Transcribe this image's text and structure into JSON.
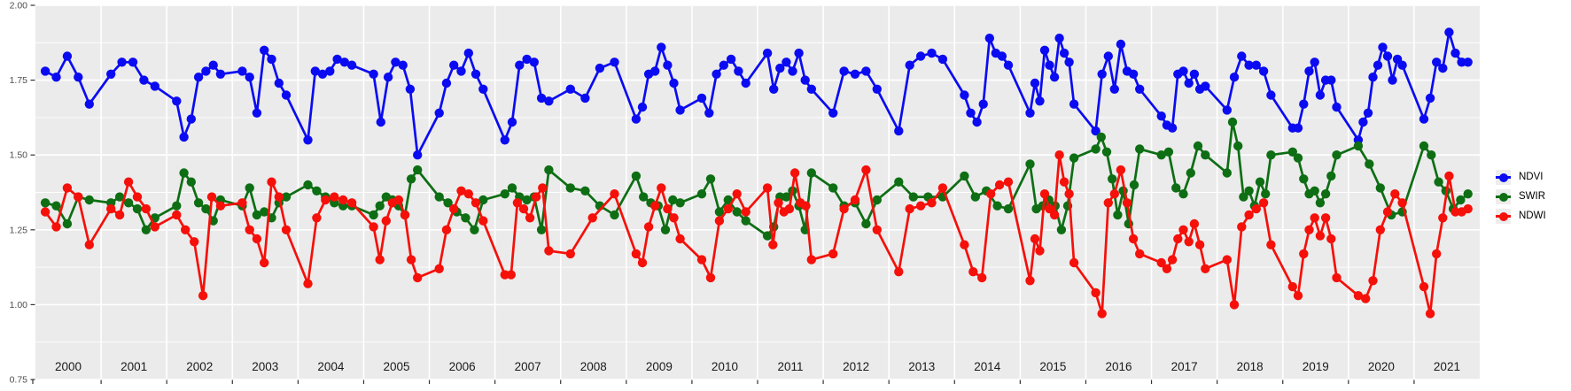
{
  "chart": {
    "title": "",
    "y_axis_labels": [
      "2.00",
      "1.75",
      "1.50",
      "1.25",
      "1.00",
      "0.75"
    ],
    "x_axis_labels": [
      "2000",
      "2001",
      "2002",
      "2003",
      "2004",
      "2005",
      "2006",
      "2007",
      "2008",
      "2009",
      "2010",
      "2011",
      "2012",
      "2013",
      "2014",
      "2015",
      "2016",
      "2017",
      "2018",
      "2019",
      "2020",
      "2021"
    ]
  },
  "legend": {
    "items": [
      {
        "label": "NDVI",
        "color": "#0b0bf2"
      },
      {
        "label": "SWIR",
        "color": "#0e6e14"
      },
      {
        "label": "NDWI",
        "color": "#f5100a"
      }
    ]
  },
  "chart_data": {
    "type": "line",
    "title": "",
    "xlabel": "",
    "ylabel": "",
    "ylim": [
      0.75,
      2.0
    ],
    "yticks": [
      0.75,
      1.0,
      1.25,
      1.5,
      1.75,
      2.0
    ],
    "y_minor_ticks": [
      0.875,
      1.125,
      1.375,
      1.625,
      1.875
    ],
    "grid": true,
    "panel_bg": "#ebebeb",
    "grid_color": "#ffffff",
    "tick_color": "#333333",
    "axis_text_color": "#4d4d4d",
    "year_label_color": "#1a1a1a",
    "legend_position": "right",
    "years": [
      "2000",
      "2001",
      "2002",
      "2003",
      "2004",
      "2005",
      "2006",
      "2007",
      "2008",
      "2009",
      "2010",
      "2011",
      "2012",
      "2013",
      "2014",
      "2015",
      "2016",
      "2017",
      "2018",
      "2019",
      "2020",
      "2021"
    ],
    "series": [
      {
        "name": "NDVI",
        "color": "#0b0bf2",
        "values_by_year": {
          "2000": [
            1.78,
            1.76,
            1.83,
            1.76,
            1.67
          ],
          "2001": [
            1.77,
            1.81,
            1.81,
            1.75,
            1.73
          ],
          "2002": [
            1.68,
            1.56,
            1.62,
            1.76,
            1.78,
            1.8,
            1.77
          ],
          "2003": [
            1.78,
            1.76,
            1.64,
            1.85,
            1.82,
            1.74,
            1.7
          ],
          "2004": [
            1.55,
            1.78,
            1.77,
            1.78,
            1.82,
            1.81,
            1.8
          ],
          "2005": [
            1.77,
            1.61,
            1.76,
            1.81,
            1.8,
            1.72,
            1.5
          ],
          "2006": [
            1.64,
            1.74,
            1.8,
            1.78,
            1.84,
            1.77,
            1.72
          ],
          "2007": [
            1.55,
            1.61,
            1.8,
            1.82,
            1.81,
            1.69,
            1.68
          ],
          "2008": [
            1.72,
            1.69,
            1.79,
            1.81
          ],
          "2009": [
            1.62,
            1.66,
            1.77,
            1.78,
            1.86,
            1.8,
            1.74,
            1.65
          ],
          "2010": [
            1.69,
            1.64,
            1.77,
            1.8,
            1.82,
            1.78,
            1.74
          ],
          "2011": [
            1.84,
            1.72,
            1.79,
            1.81,
            1.78,
            1.84,
            1.75,
            1.72
          ],
          "2012": [
            1.64,
            1.78,
            1.77,
            1.78,
            1.72
          ],
          "2013": [
            1.58,
            1.8,
            1.83,
            1.84,
            1.82
          ],
          "2014": [
            1.7,
            1.64,
            1.61,
            1.67,
            1.89,
            1.84,
            1.83,
            1.8
          ],
          "2015": [
            1.64,
            1.74,
            1.68,
            1.85,
            1.8,
            1.76,
            1.89,
            1.84,
            1.81,
            1.67
          ],
          "2016": [
            1.58,
            1.77,
            1.83,
            1.72,
            1.87,
            1.78,
            1.77,
            1.72
          ],
          "2017": [
            1.63,
            1.6,
            1.59,
            1.77,
            1.78,
            1.74,
            1.77,
            1.72,
            1.73
          ],
          "2018": [
            1.65,
            1.76,
            1.83,
            1.8,
            1.8,
            1.78,
            1.7
          ],
          "2019": [
            1.59,
            1.59,
            1.67,
            1.78,
            1.81,
            1.7,
            1.75,
            1.75,
            1.66
          ],
          "2020": [
            1.55,
            1.61,
            1.64,
            1.76,
            1.8,
            1.86,
            1.83,
            1.75,
            1.82,
            1.8
          ],
          "2021": [
            1.62,
            1.69,
            1.81,
            1.79,
            1.91,
            1.84,
            1.81,
            1.81
          ]
        }
      },
      {
        "name": "SWIR",
        "color": "#0e6e14",
        "values_by_year": {
          "2000": [
            1.34,
            1.33,
            1.27,
            1.36,
            1.35
          ],
          "2001": [
            1.34,
            1.36,
            1.34,
            1.32,
            1.25,
            1.29
          ],
          "2002": [
            1.33,
            1.44,
            1.41,
            1.34,
            1.32,
            1.28,
            1.35
          ],
          "2003": [
            1.33,
            1.39,
            1.3,
            1.31,
            1.29,
            1.34,
            1.36
          ],
          "2004": [
            1.4,
            1.38,
            1.36,
            1.34,
            1.33,
            1.33
          ],
          "2005": [
            1.3,
            1.33,
            1.36,
            1.35,
            1.33,
            1.3,
            1.42,
            1.45
          ],
          "2006": [
            1.36,
            1.34,
            1.31,
            1.29,
            1.25,
            1.35
          ],
          "2007": [
            1.37,
            1.39,
            1.36,
            1.35,
            1.36,
            1.25,
            1.45
          ],
          "2008": [
            1.39,
            1.38,
            1.33,
            1.3
          ],
          "2009": [
            1.43,
            1.36,
            1.34,
            1.33,
            1.25,
            1.35,
            1.34
          ],
          "2010": [
            1.37,
            1.42,
            1.31,
            1.35,
            1.31,
            1.28
          ],
          "2011": [
            1.23,
            1.26,
            1.36,
            1.36,
            1.38,
            1.33,
            1.25,
            1.44
          ],
          "2012": [
            1.39,
            1.33,
            1.34,
            1.27,
            1.35
          ],
          "2013": [
            1.41,
            1.36,
            1.36,
            1.36
          ],
          "2014": [
            1.43,
            1.36,
            1.38,
            1.33,
            1.32
          ],
          "2015": [
            1.47,
            1.32,
            1.33,
            1.35,
            1.33,
            1.25,
            1.33,
            1.49
          ],
          "2016": [
            1.52,
            1.56,
            1.51,
            1.42,
            1.3,
            1.38,
            1.27,
            1.4,
            1.52
          ],
          "2017": [
            1.5,
            1.51,
            1.39,
            1.37,
            1.44,
            1.53,
            1.5
          ],
          "2018": [
            1.44,
            1.61,
            1.53,
            1.36,
            1.38,
            1.33,
            1.41,
            1.37,
            1.5
          ],
          "2019": [
            1.51,
            1.49,
            1.42,
            1.37,
            1.38,
            1.34,
            1.37,
            1.43,
            1.5
          ],
          "2020": [
            1.53,
            1.47,
            1.39,
            1.3,
            1.31
          ],
          "2021": [
            1.53,
            1.5,
            1.41,
            1.38,
            1.32,
            1.35,
            1.37
          ]
        }
      },
      {
        "name": "NDWI",
        "color": "#f5100a",
        "values_by_year": {
          "2000": [
            1.31,
            1.26,
            1.39,
            1.36,
            1.2
          ],
          "2001": [
            1.32,
            1.3,
            1.41,
            1.36,
            1.32,
            1.26
          ],
          "2002": [
            1.3,
            1.25,
            1.21,
            1.03,
            1.36,
            1.33
          ],
          "2003": [
            1.34,
            1.25,
            1.22,
            1.14,
            1.41,
            1.36,
            1.25
          ],
          "2004": [
            1.07,
            1.29,
            1.35,
            1.36,
            1.35,
            1.34
          ],
          "2005": [
            1.26,
            1.15,
            1.28,
            1.34,
            1.35,
            1.3,
            1.15,
            1.09
          ],
          "2006": [
            1.12,
            1.25,
            1.32,
            1.38,
            1.37,
            1.34,
            1.28
          ],
          "2007": [
            1.1,
            1.1,
            1.34,
            1.32,
            1.29,
            1.36,
            1.39,
            1.18
          ],
          "2008": [
            1.17,
            1.29,
            1.37
          ],
          "2009": [
            1.17,
            1.14,
            1.26,
            1.33,
            1.39,
            1.32,
            1.29,
            1.22
          ],
          "2010": [
            1.15,
            1.09,
            1.28,
            1.32,
            1.37,
            1.31
          ],
          "2011": [
            1.39,
            1.2,
            1.34,
            1.31,
            1.32,
            1.44,
            1.34,
            1.33,
            1.15
          ],
          "2012": [
            1.17,
            1.32,
            1.35,
            1.45,
            1.25
          ],
          "2013": [
            1.11,
            1.32,
            1.33,
            1.34,
            1.39
          ],
          "2014": [
            1.2,
            1.11,
            1.09,
            1.37,
            1.4,
            1.41
          ],
          "2015": [
            1.08,
            1.22,
            1.18,
            1.37,
            1.32,
            1.3,
            1.5,
            1.41,
            1.37,
            1.14
          ],
          "2016": [
            1.04,
            0.97,
            1.34,
            1.37,
            1.45,
            1.34,
            1.22,
            1.17
          ],
          "2017": [
            1.14,
            1.12,
            1.15,
            1.22,
            1.25,
            1.21,
            1.27,
            1.2,
            1.12
          ],
          "2018": [
            1.15,
            1.0,
            1.26,
            1.3,
            1.32,
            1.34,
            1.2
          ],
          "2019": [
            1.06,
            1.03,
            1.17,
            1.25,
            1.29,
            1.23,
            1.29,
            1.22,
            1.09
          ],
          "2020": [
            1.03,
            1.02,
            1.08,
            1.25,
            1.31,
            1.37,
            1.34
          ],
          "2021": [
            1.06,
            0.97,
            1.17,
            1.29,
            1.43,
            1.31,
            1.31,
            1.32
          ]
        }
      }
    ]
  }
}
